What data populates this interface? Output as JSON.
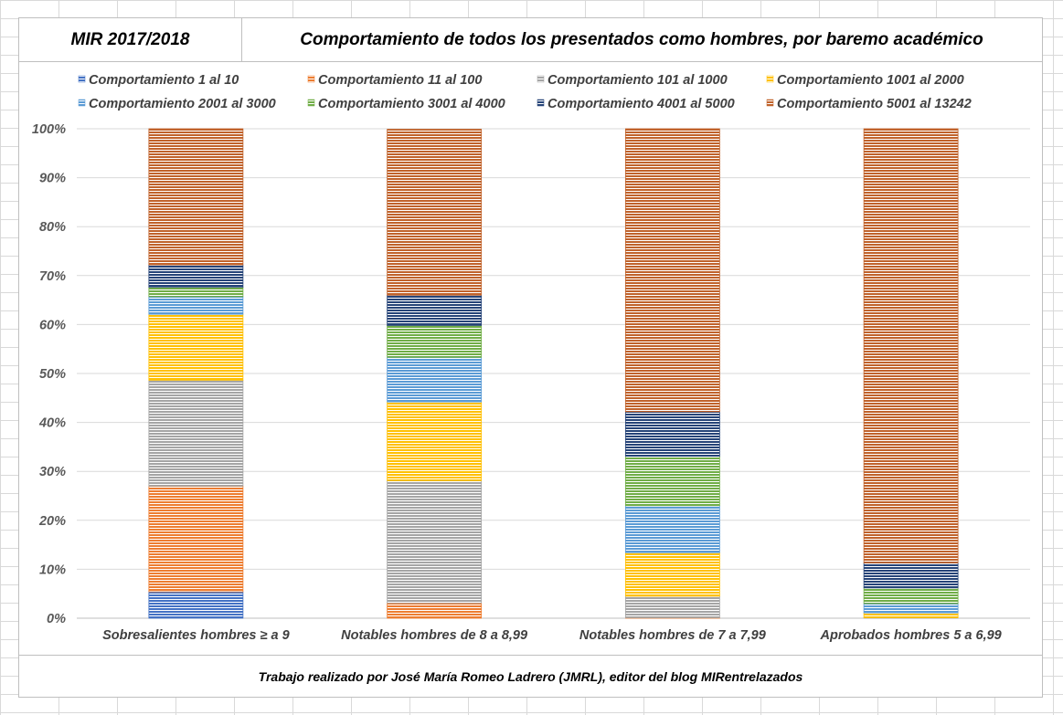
{
  "header": {
    "left_title": "MIR 2017/2018",
    "right_title": "Comportamiento de todos los presentados como hombres, por baremo académico"
  },
  "footer": {
    "credit": "Trabajo realizado por José María Romeo Ladrero (JMRL), editor del blog MIRentrelazados"
  },
  "chart_data": {
    "type": "bar",
    "stacked": true,
    "percent": true,
    "title": "Comportamiento de todos los presentados como hombres, por baremo académico",
    "xlabel": "",
    "ylabel": "",
    "ylim": [
      0,
      100
    ],
    "yticks": [
      "0%",
      "10%",
      "20%",
      "30%",
      "40%",
      "50%",
      "60%",
      "70%",
      "80%",
      "90%",
      "100%"
    ],
    "grid": true,
    "legend_position": "top",
    "categories": [
      "Sobresalientes hombres ≥ a 9",
      "Notables hombres de 8 a 8,99",
      "Notables hombres de 7 a 7,99",
      "Aprobados hombres 5 a 6,99"
    ],
    "series": [
      {
        "name": "Comportamiento 1 al 10",
        "color": "#4472c4",
        "values": [
          5.4,
          0.0,
          0.0,
          0.0
        ]
      },
      {
        "name": "Comportamiento 11 al 100",
        "color": "#ed7d31",
        "values": [
          21.6,
          3.1,
          0.1,
          0.0
        ]
      },
      {
        "name": "Comportamiento 101 al 1000",
        "color": "#a5a5a5",
        "values": [
          21.6,
          25.0,
          4.4,
          0.1
        ]
      },
      {
        "name": "Comportamiento 1001 al 2000",
        "color": "#ffc000",
        "values": [
          13.5,
          16.1,
          8.9,
          1.0
        ]
      },
      {
        "name": "Comportamiento 2001 al 3000",
        "color": "#5b9bd5",
        "values": [
          3.6,
          9.1,
          9.6,
          1.9
        ]
      },
      {
        "name": "Comportamiento 3001 al 4000",
        "color": "#70ad47",
        "values": [
          1.9,
          6.5,
          10.1,
          3.2
        ]
      },
      {
        "name": "Comportamiento 4001 al 5000",
        "color": "#264478",
        "values": [
          4.6,
          6.2,
          9.1,
          5.1
        ]
      },
      {
        "name": "Comportamiento 5001 al 13242",
        "color": "#c0622b",
        "values": [
          27.8,
          33.9,
          57.8,
          88.7
        ]
      }
    ]
  }
}
